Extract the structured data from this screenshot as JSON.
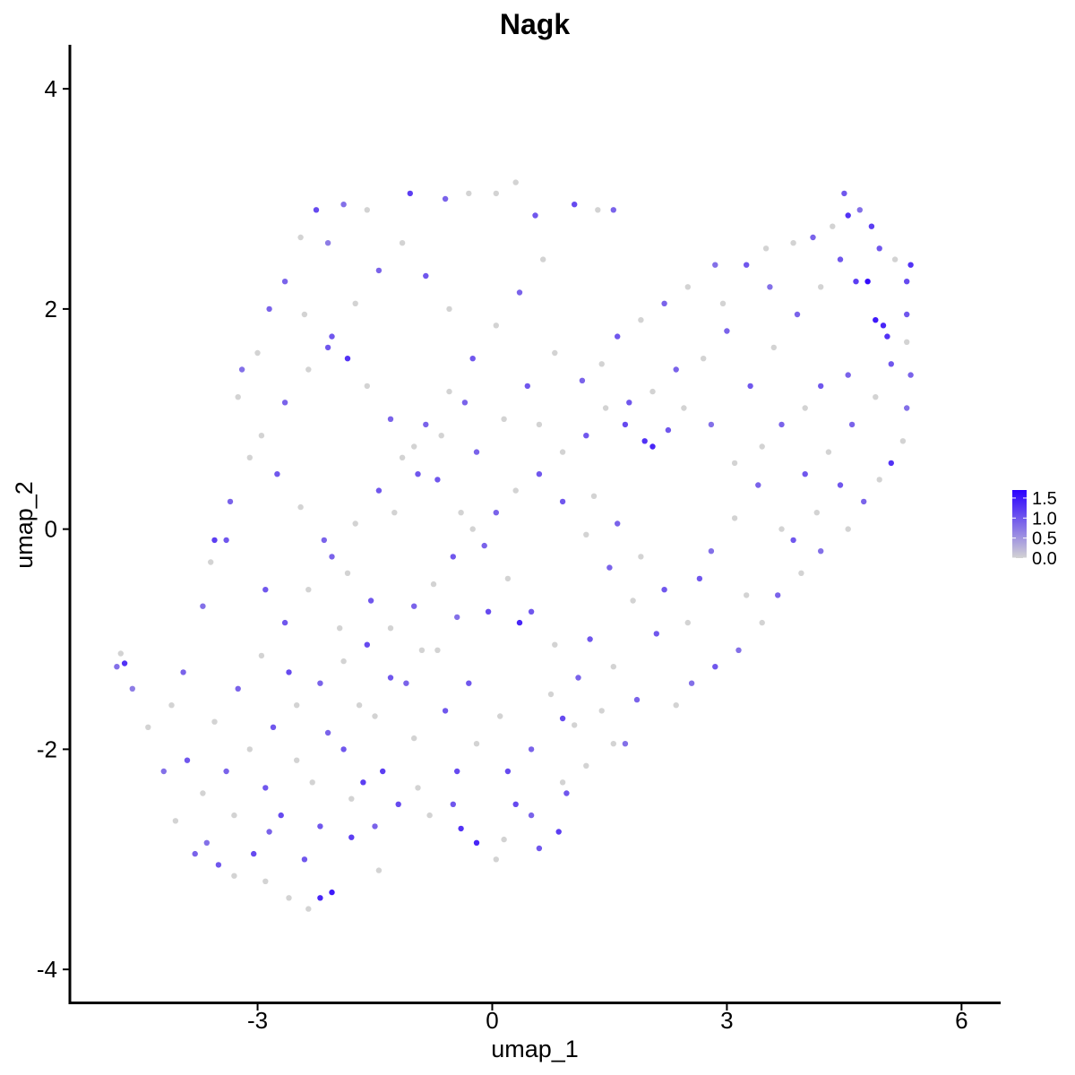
{
  "chart_data": {
    "type": "scatter",
    "title": "Nagk",
    "xlabel": "umap_1",
    "ylabel": "umap_2",
    "xlim": [
      -5.4,
      6.5
    ],
    "ylim": [
      -4.3,
      4.4
    ],
    "x_ticks": [
      -3,
      0,
      3,
      6
    ],
    "x_tick_labels": [
      "-3",
      "0",
      "3",
      "6"
    ],
    "y_ticks": [
      -4,
      -2,
      0,
      2,
      4
    ],
    "y_tick_labels": [
      "-4",
      "-2",
      "0",
      "2",
      "4"
    ],
    "grid": false,
    "legend": {
      "placement": "right",
      "type": "colorbar",
      "min": 0.0,
      "max": 1.7,
      "tick_values": [
        0.0,
        0.5,
        1.0,
        1.5
      ],
      "tick_labels": [
        "0.0",
        "0.5",
        "1.0",
        "1.5"
      ],
      "low_color": "#d3d3d3",
      "high_color": "#2a00ff"
    },
    "colors": {
      "low": "#d3d3d3",
      "mid": "#a47ee8",
      "high": "#2a00ff"
    },
    "points": [
      [
        -4.8,
        -1.25,
        0.8
      ],
      [
        -4.7,
        -1.22,
        1.3
      ],
      [
        -4.75,
        -1.13,
        0.0
      ],
      [
        -4.6,
        -1.45,
        0.7
      ],
      [
        -4.4,
        -1.8,
        0.0
      ],
      [
        -3.05,
        -2.95,
        1.1
      ],
      [
        -2.85,
        -2.75,
        0.9
      ],
      [
        -2.2,
        -3.35,
        1.4
      ],
      [
        -2.05,
        -3.3,
        1.5
      ],
      [
        -2.35,
        -3.45,
        0.0
      ],
      [
        -2.6,
        -3.35,
        0.0
      ],
      [
        -1.45,
        -3.1,
        0.0
      ],
      [
        0.05,
        -3.0,
        0.0
      ],
      [
        0.6,
        -2.9,
        1.0
      ],
      [
        0.85,
        -2.75,
        1.2
      ],
      [
        -0.2,
        -2.85,
        1.4
      ],
      [
        -0.4,
        -2.72,
        1.3
      ],
      [
        0.15,
        -2.82,
        0.0
      ],
      [
        1.05,
        -1.78,
        0.0
      ],
      [
        0.9,
        -1.72,
        1.1
      ],
      [
        -1.9,
        2.95,
        0.8
      ],
      [
        -2.25,
        2.9,
        1.1
      ],
      [
        -1.05,
        3.05,
        1.2
      ],
      [
        -0.6,
        3.0,
        0.9
      ],
      [
        -0.3,
        3.05,
        0.0
      ],
      [
        0.05,
        3.05,
        0.0
      ],
      [
        0.3,
        3.15,
        0.0
      ],
      [
        0.55,
        2.85,
        1.0
      ],
      [
        1.05,
        2.95,
        1.1
      ],
      [
        1.55,
        2.9,
        0.9
      ],
      [
        1.35,
        2.9,
        0.0
      ],
      [
        -1.6,
        2.9,
        0.0
      ],
      [
        -2.45,
        2.65,
        0.0
      ],
      [
        -2.1,
        2.6,
        0.7
      ],
      [
        -2.85,
        2.0,
        0.9
      ],
      [
        -3.0,
        1.6,
        0.0
      ],
      [
        -3.2,
        1.45,
        0.8
      ],
      [
        -3.25,
        1.2,
        0.0
      ],
      [
        -3.1,
        0.65,
        0.0
      ],
      [
        -3.35,
        0.25,
        0.9
      ],
      [
        -3.4,
        -0.1,
        1.0
      ],
      [
        -3.6,
        -0.3,
        0.0
      ],
      [
        -3.7,
        -0.7,
        0.8
      ],
      [
        -3.95,
        -1.3,
        0.9
      ],
      [
        -4.1,
        -1.6,
        0.0
      ],
      [
        -4.2,
        -2.2,
        0.8
      ],
      [
        -4.05,
        -2.65,
        0.0
      ],
      [
        -3.8,
        -2.95,
        0.9
      ],
      [
        -3.5,
        -3.05,
        1.0
      ],
      [
        -3.3,
        -3.15,
        0.0
      ],
      [
        -2.9,
        -3.2,
        0.0
      ],
      [
        -2.4,
        -3.0,
        1.0
      ],
      [
        -1.8,
        -2.8,
        1.2
      ],
      [
        -1.5,
        -2.7,
        0.9
      ],
      [
        -1.2,
        -2.5,
        1.1
      ],
      [
        -0.8,
        -2.6,
        0.0
      ],
      [
        -0.5,
        -2.5,
        1.0
      ],
      [
        0.3,
        -2.5,
        1.1
      ],
      [
        0.5,
        -2.6,
        0.9
      ],
      [
        0.95,
        -2.4,
        1.0
      ],
      [
        1.2,
        -2.15,
        0.0
      ],
      [
        1.55,
        -1.95,
        0.0
      ],
      [
        1.85,
        -1.55,
        0.9
      ],
      [
        2.35,
        -1.6,
        0.0
      ],
      [
        2.55,
        -1.4,
        0.8
      ],
      [
        2.85,
        -1.25,
        1.0
      ],
      [
        3.15,
        -1.1,
        0.8
      ],
      [
        3.45,
        -0.85,
        0.0
      ],
      [
        3.65,
        -0.6,
        0.9
      ],
      [
        3.95,
        -0.4,
        0.0
      ],
      [
        4.2,
        -0.2,
        0.8
      ],
      [
        4.55,
        0.0,
        0.0
      ],
      [
        4.75,
        0.25,
        0.9
      ],
      [
        4.95,
        0.45,
        0.0
      ],
      [
        5.1,
        0.6,
        1.3
      ],
      [
        5.25,
        0.8,
        0.0
      ],
      [
        5.3,
        1.1,
        0.8
      ],
      [
        5.35,
        1.4,
        0.9
      ],
      [
        5.3,
        1.7,
        0.0
      ],
      [
        5.3,
        1.95,
        1.0
      ],
      [
        5.3,
        2.25,
        1.1
      ],
      [
        5.35,
        2.4,
        1.3
      ],
      [
        5.15,
        2.45,
        0.0
      ],
      [
        4.95,
        2.55,
        1.0
      ],
      [
        4.85,
        2.75,
        1.2
      ],
      [
        4.7,
        2.9,
        0.8
      ],
      [
        4.5,
        3.05,
        1.0
      ],
      [
        4.55,
        2.85,
        1.3
      ],
      [
        4.35,
        2.75,
        0.0
      ],
      [
        4.1,
        2.65,
        0.9
      ],
      [
        3.85,
        2.6,
        0.0
      ],
      [
        3.5,
        2.55,
        0.0
      ],
      [
        3.25,
        2.4,
        1.0
      ],
      [
        2.85,
        2.4,
        0.8
      ],
      [
        2.5,
        2.2,
        0.0
      ],
      [
        2.2,
        2.05,
        0.9
      ],
      [
        1.9,
        1.9,
        0.0
      ],
      [
        1.6,
        1.75,
        1.0
      ],
      [
        1.4,
        1.5,
        0.0
      ],
      [
        1.15,
        1.35,
        0.9
      ],
      [
        4.8,
        2.25,
        1.6
      ],
      [
        4.9,
        1.9,
        1.5
      ],
      [
        5.0,
        1.85,
        1.4
      ],
      [
        5.05,
        1.75,
        1.3
      ],
      [
        4.65,
        2.25,
        1.2
      ],
      [
        4.55,
        1.4,
        0.9
      ],
      [
        4.2,
        1.3,
        1.0
      ],
      [
        4.0,
        1.1,
        0.0
      ],
      [
        3.7,
        0.95,
        0.9
      ],
      [
        3.45,
        0.75,
        0.0
      ],
      [
        3.1,
        0.6,
        0.0
      ],
      [
        2.8,
        0.95,
        0.8
      ],
      [
        2.45,
        1.1,
        0.0
      ],
      [
        2.25,
        0.9,
        1.0
      ],
      [
        2.05,
        0.75,
        1.4
      ],
      [
        1.95,
        0.8,
        1.3
      ],
      [
        1.7,
        0.95,
        1.1
      ],
      [
        1.45,
        1.1,
        0.0
      ],
      [
        1.2,
        0.85,
        1.0
      ],
      [
        0.9,
        0.7,
        0.0
      ],
      [
        0.6,
        0.5,
        1.0
      ],
      [
        0.3,
        0.35,
        0.0
      ],
      [
        0.05,
        0.15,
        0.9
      ],
      [
        -0.25,
        0.0,
        0.0
      ],
      [
        -0.5,
        -0.25,
        1.0
      ],
      [
        -0.75,
        -0.5,
        0.0
      ],
      [
        -1.0,
        -0.7,
        0.9
      ],
      [
        -1.3,
        -0.9,
        0.0
      ],
      [
        -1.6,
        -1.05,
        1.1
      ],
      [
        -1.9,
        -1.2,
        0.0
      ],
      [
        -2.2,
        -1.4,
        0.9
      ],
      [
        -2.5,
        -1.6,
        0.0
      ],
      [
        -2.8,
        -1.8,
        1.0
      ],
      [
        -3.1,
        -2.0,
        0.0
      ],
      [
        -3.4,
        -2.2,
        0.9
      ],
      [
        -3.7,
        -2.4,
        0.0
      ],
      [
        -3.9,
        -2.1,
        1.0
      ],
      [
        -3.55,
        -1.75,
        0.0
      ],
      [
        -3.25,
        -1.45,
        0.9
      ],
      [
        -2.95,
        -1.15,
        0.0
      ],
      [
        -2.65,
        -0.85,
        1.0
      ],
      [
        -2.35,
        -0.55,
        0.0
      ],
      [
        -2.05,
        -0.25,
        0.9
      ],
      [
        -1.75,
        0.05,
        0.0
      ],
      [
        -1.45,
        0.35,
        1.0
      ],
      [
        -1.15,
        0.65,
        0.0
      ],
      [
        -0.85,
        0.95,
        0.9
      ],
      [
        -0.55,
        1.25,
        0.0
      ],
      [
        -0.25,
        1.55,
        1.0
      ],
      [
        0.05,
        1.85,
        0.0
      ],
      [
        0.35,
        2.15,
        0.9
      ],
      [
        0.65,
        2.45,
        0.0
      ],
      [
        -2.65,
        2.25,
        0.9
      ],
      [
        -2.4,
        1.95,
        0.0
      ],
      [
        -2.1,
        1.65,
        1.0
      ],
      [
        -1.85,
        1.55,
        1.3
      ],
      [
        -1.6,
        1.3,
        0.0
      ],
      [
        -1.3,
        1.0,
        0.9
      ],
      [
        -1.0,
        0.75,
        0.0
      ],
      [
        -0.7,
        0.45,
        1.0
      ],
      [
        -0.4,
        0.15,
        0.0
      ],
      [
        -0.1,
        -0.15,
        0.9
      ],
      [
        0.2,
        -0.45,
        0.0
      ],
      [
        0.5,
        -0.75,
        1.0
      ],
      [
        0.8,
        -1.05,
        0.0
      ],
      [
        1.1,
        -1.35,
        0.9
      ],
      [
        1.4,
        -1.65,
        0.0
      ],
      [
        1.7,
        -1.95,
        0.8
      ],
      [
        -0.05,
        -0.75,
        1.1
      ],
      [
        0.35,
        -0.85,
        1.4
      ],
      [
        -0.45,
        -0.8,
        0.8
      ],
      [
        -0.9,
        -1.1,
        0.0
      ],
      [
        -1.3,
        -1.35,
        1.0
      ],
      [
        -1.7,
        -1.6,
        0.0
      ],
      [
        -2.1,
        -1.85,
        0.9
      ],
      [
        -2.5,
        -2.1,
        0.0
      ],
      [
        -2.9,
        -2.35,
        1.0
      ],
      [
        -3.3,
        -2.6,
        0.0
      ],
      [
        -3.65,
        -2.85,
        0.8
      ],
      [
        -2.7,
        -2.6,
        1.1
      ],
      [
        -2.3,
        -2.3,
        0.0
      ],
      [
        -1.9,
        -2.0,
        1.0
      ],
      [
        -1.5,
        -1.7,
        0.0
      ],
      [
        -1.1,
        -1.4,
        0.9
      ],
      [
        -0.7,
        -1.1,
        0.0
      ],
      [
        -0.3,
        -1.4,
        1.0
      ],
      [
        0.1,
        -1.7,
        0.0
      ],
      [
        0.5,
        -2.0,
        0.9
      ],
      [
        0.9,
        -2.3,
        0.0
      ],
      [
        0.2,
        -2.2,
        1.1
      ],
      [
        -0.2,
        -1.95,
        0.0
      ],
      [
        -0.6,
        -1.65,
        1.0
      ],
      [
        -1.0,
        -1.9,
        0.0
      ],
      [
        -1.4,
        -2.2,
        1.2
      ],
      [
        -1.8,
        -2.45,
        0.0
      ],
      [
        -2.2,
        -2.7,
        1.0
      ],
      [
        1.3,
        0.3,
        0.0
      ],
      [
        1.6,
        0.05,
        0.9
      ],
      [
        1.9,
        -0.25,
        0.0
      ],
      [
        2.2,
        -0.55,
        1.0
      ],
      [
        2.5,
        -0.85,
        0.0
      ],
      [
        2.8,
        -0.2,
        0.8
      ],
      [
        3.1,
        0.1,
        0.0
      ],
      [
        3.4,
        0.4,
        0.9
      ],
      [
        3.7,
        0.0,
        0.0
      ],
      [
        4.0,
        0.5,
        1.0
      ],
      [
        4.3,
        0.7,
        0.0
      ],
      [
        4.6,
        0.95,
        0.9
      ],
      [
        4.9,
        1.2,
        0.0
      ],
      [
        5.1,
        1.5,
        1.0
      ],
      [
        3.0,
        1.8,
        0.9
      ],
      [
        2.7,
        1.55,
        0.0
      ],
      [
        3.3,
        1.3,
        1.0
      ],
      [
        3.6,
        1.65,
        0.0
      ],
      [
        3.9,
        1.95,
        0.9
      ],
      [
        4.2,
        2.2,
        0.0
      ],
      [
        4.45,
        2.45,
        1.0
      ],
      [
        3.55,
        2.2,
        0.8
      ],
      [
        2.95,
        2.05,
        0.0
      ],
      [
        2.35,
        1.45,
        0.9
      ],
      [
        2.05,
        1.25,
        0.0
      ],
      [
        1.75,
        1.15,
        1.0
      ],
      [
        0.8,
        1.6,
        0.0
      ],
      [
        0.45,
        1.3,
        1.0
      ],
      [
        0.15,
        1.0,
        0.0
      ],
      [
        -0.2,
        0.7,
        0.9
      ],
      [
        -0.55,
        2.0,
        0.0
      ],
      [
        -0.85,
        2.3,
        1.0
      ],
      [
        -1.15,
        2.6,
        0.0
      ],
      [
        -1.45,
        2.35,
        0.9
      ],
      [
        -1.75,
        2.05,
        0.0
      ],
      [
        -2.05,
        1.75,
        1.0
      ],
      [
        -2.35,
        1.45,
        0.0
      ],
      [
        -2.65,
        1.15,
        0.9
      ],
      [
        -2.95,
        0.85,
        0.0
      ],
      [
        -2.75,
        0.5,
        1.0
      ],
      [
        -2.45,
        0.2,
        0.0
      ],
      [
        -2.15,
        -0.1,
        0.9
      ],
      [
        -1.85,
        -0.4,
        0.0
      ],
      [
        -1.55,
        -0.65,
        1.0
      ],
      [
        -1.25,
        0.15,
        0.0
      ],
      [
        -0.95,
        0.5,
        1.0
      ],
      [
        -0.65,
        0.85,
        0.0
      ],
      [
        -0.35,
        1.15,
        0.9
      ],
      [
        0.6,
        0.95,
        0.0
      ],
      [
        0.9,
        0.25,
        1.0
      ],
      [
        1.2,
        -0.05,
        0.0
      ],
      [
        1.5,
        -0.35,
        0.9
      ],
      [
        1.8,
        -0.65,
        0.0
      ],
      [
        2.1,
        -0.95,
        1.0
      ],
      [
        -3.55,
        -0.1,
        1.2
      ],
      [
        -2.9,
        -0.55,
        1.0
      ],
      [
        -2.6,
        -1.3,
        1.1
      ],
      [
        -1.95,
        -0.9,
        0.0
      ],
      [
        -1.65,
        -2.3,
        1.2
      ],
      [
        -0.95,
        -2.35,
        0.0
      ],
      [
        -0.45,
        -2.2,
        1.1
      ],
      [
        0.75,
        -1.5,
        0.0
      ],
      [
        1.25,
        -1.0,
        1.0
      ],
      [
        1.55,
        -1.25,
        0.0
      ],
      [
        2.65,
        -0.45,
        1.0
      ],
      [
        3.25,
        -0.6,
        0.0
      ],
      [
        3.85,
        -0.1,
        1.0
      ],
      [
        4.15,
        0.15,
        0.0
      ],
      [
        4.45,
        0.4,
        1.0
      ]
    ]
  }
}
